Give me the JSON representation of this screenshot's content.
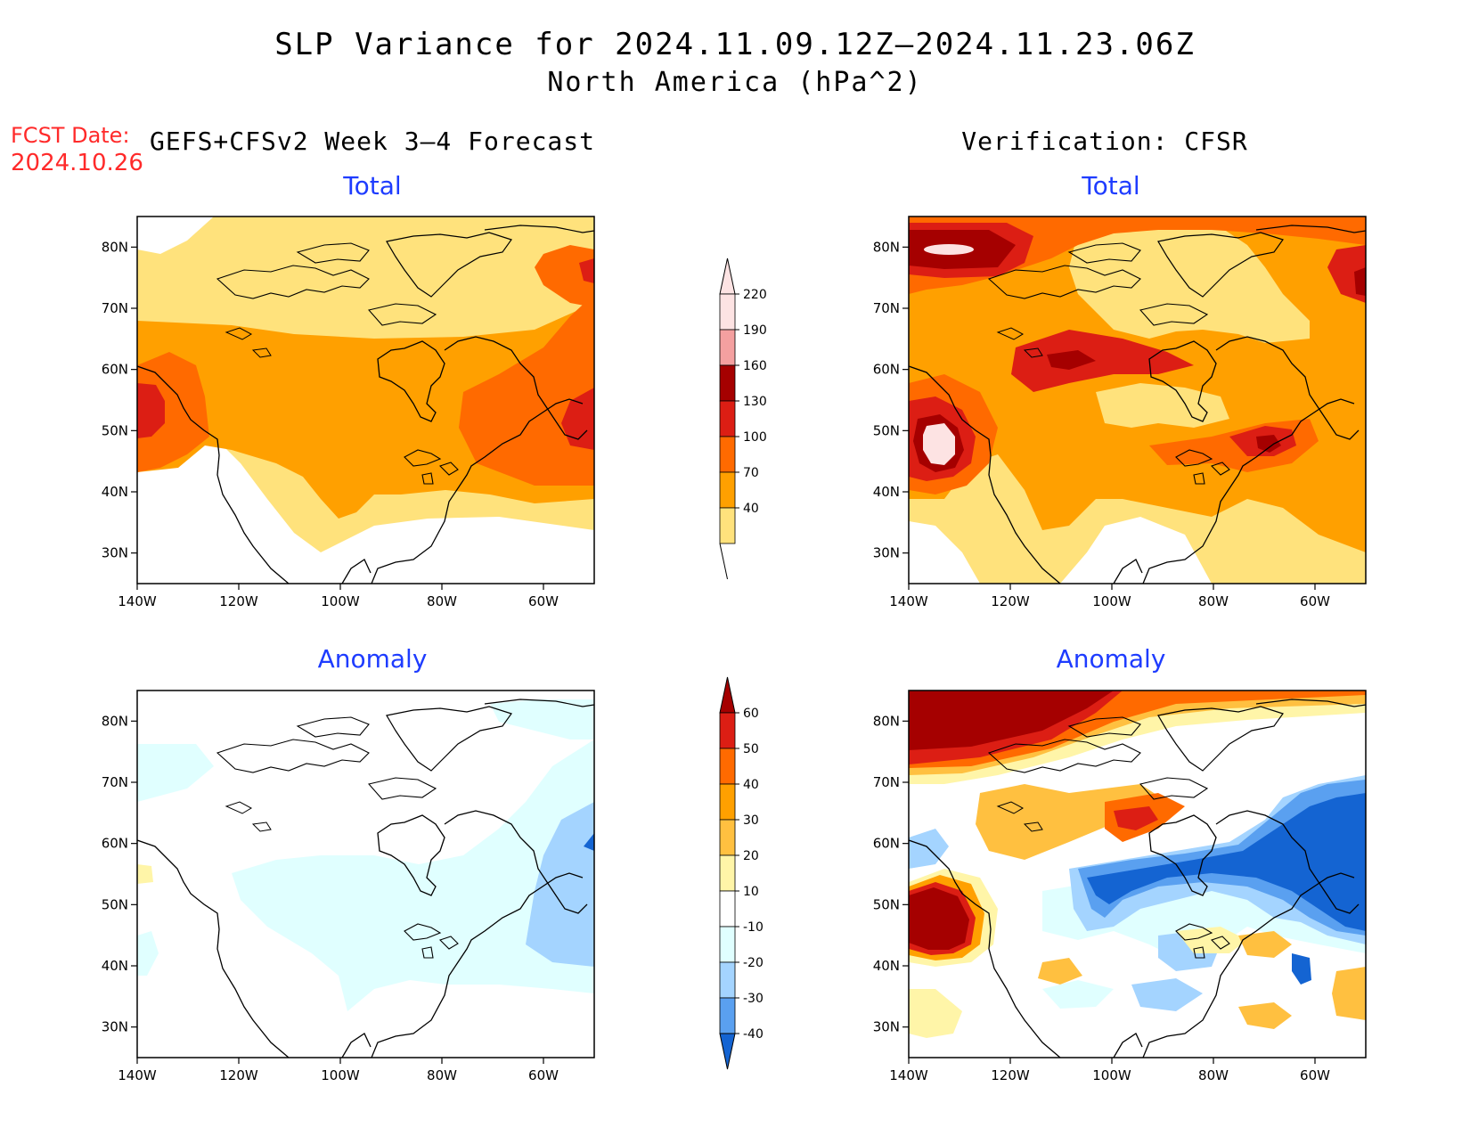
{
  "header": {
    "title_line1": "SLP Variance for 2024.11.09.12Z–2024.11.23.06Z",
    "title_line2": "North America (hPa^2)",
    "fcst_label": "FCST Date:",
    "fcst_date": "2024.10.26",
    "left_header": "GEFS+CFSv2 Week 3–4 Forecast",
    "right_header": "Verification: CFSR"
  },
  "panels": {
    "forecast_total": {
      "title": "Total"
    },
    "verification_total": {
      "title": "Total"
    },
    "forecast_anomaly": {
      "title": "Anomaly"
    },
    "verification_anomaly": {
      "title": "Anomaly"
    }
  },
  "axes": {
    "lat_labels": [
      "80N",
      "70N",
      "60N",
      "50N",
      "40N",
      "30N"
    ],
    "lon_labels": [
      "140W",
      "120W",
      "100W",
      "80W",
      "60W"
    ],
    "lat_values": [
      80,
      70,
      60,
      50,
      40,
      30
    ],
    "lon_values": [
      -140,
      -120,
      -100,
      -80,
      -60
    ],
    "lat_range": [
      25,
      85
    ],
    "lon_range": [
      -140,
      -50
    ]
  },
  "colorbars": {
    "total": {
      "labels": [
        "220",
        "190",
        "160",
        "130",
        "100",
        "70",
        "40"
      ],
      "colors": [
        "#fde3e3",
        "#f4a0a0",
        "#a50000",
        "#dc1e14",
        "#ff6a00",
        "#ffa000",
        "#ffe27c"
      ]
    },
    "anomaly": {
      "labels": [
        "60",
        "50",
        "40",
        "30",
        "20",
        "10",
        "-10",
        "-20",
        "-30",
        "-40"
      ],
      "colors": [
        "#a50000",
        "#dc1e14",
        "#ff6a00",
        "#ffa000",
        "#ffc040",
        "#fff5a8",
        "#ffffff",
        "#e0ffff",
        "#a4d4ff",
        "#5aa0f0",
        "#1464d2"
      ]
    }
  }
}
